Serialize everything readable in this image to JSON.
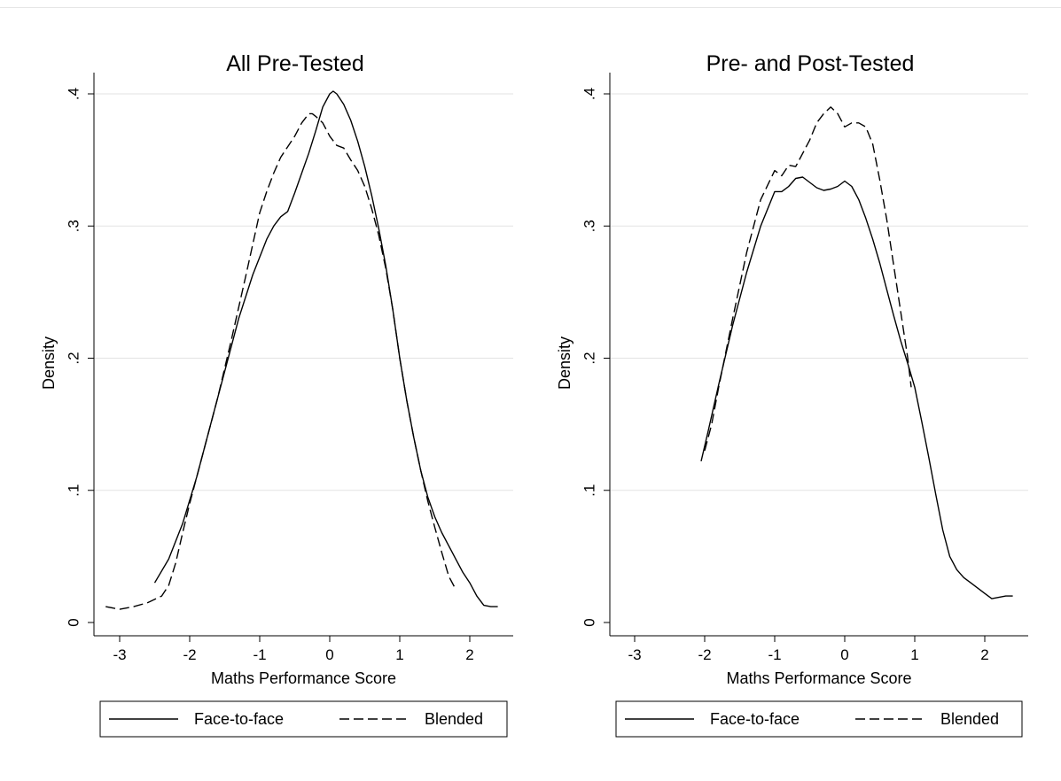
{
  "chart_data": [
    {
      "type": "line",
      "title": "All Pre-Tested",
      "xlabel": "Maths Performance Score",
      "ylabel": "Density",
      "xlim": [
        -3.3,
        2.5
      ],
      "ylim": [
        -0.005,
        0.41
      ],
      "xticks": [
        -3,
        -2,
        -1,
        0,
        1,
        2
      ],
      "yticks": [
        0,
        0.1,
        0.2,
        0.3,
        0.4
      ],
      "xtick_labels": [
        "-3",
        "-2",
        "-1",
        "0",
        "1",
        "2"
      ],
      "ytick_labels": [
        "0",
        ".1",
        ".2",
        ".3",
        ".4"
      ],
      "grid": "horizontal",
      "legend_position": "bottom",
      "series": [
        {
          "name": "Face-to-face",
          "style": "solid",
          "x": [
            -2.5,
            -2.3,
            -2.1,
            -1.9,
            -1.7,
            -1.5,
            -1.3,
            -1.1,
            -0.9,
            -0.8,
            -0.7,
            -0.6,
            -0.5,
            -0.4,
            -0.3,
            -0.2,
            -0.1,
            0.0,
            0.05,
            0.1,
            0.2,
            0.3,
            0.4,
            0.5,
            0.6,
            0.7,
            0.8,
            0.9,
            1.0,
            1.1,
            1.2,
            1.3,
            1.4,
            1.5,
            1.6,
            1.7,
            1.8,
            1.9,
            2.0,
            2.1,
            2.2,
            2.3,
            2.4
          ],
          "y": [
            0.03,
            0.048,
            0.075,
            0.11,
            0.15,
            0.19,
            0.23,
            0.263,
            0.29,
            0.3,
            0.307,
            0.311,
            0.325,
            0.34,
            0.355,
            0.372,
            0.39,
            0.4,
            0.402,
            0.4,
            0.392,
            0.38,
            0.364,
            0.345,
            0.323,
            0.298,
            0.27,
            0.237,
            0.2,
            0.168,
            0.14,
            0.115,
            0.095,
            0.08,
            0.068,
            0.058,
            0.048,
            0.038,
            0.03,
            0.02,
            0.013,
            0.012,
            0.012
          ]
        },
        {
          "name": "Blended",
          "style": "dashed",
          "x": [
            -3.2,
            -3.0,
            -2.8,
            -2.6,
            -2.4,
            -2.3,
            -2.2,
            -2.1,
            -2.0,
            -1.8,
            -1.6,
            -1.4,
            -1.2,
            -1.0,
            -0.9,
            -0.8,
            -0.7,
            -0.6,
            -0.5,
            -0.4,
            -0.3,
            -0.25,
            -0.2,
            -0.1,
            0.0,
            0.1,
            0.2,
            0.3,
            0.4,
            0.5,
            0.6,
            0.7,
            0.8,
            0.9,
            1.0,
            1.1,
            1.2,
            1.3,
            1.4,
            1.5,
            1.6,
            1.7,
            1.8
          ],
          "y": [
            0.012,
            0.01,
            0.012,
            0.015,
            0.02,
            0.028,
            0.045,
            0.068,
            0.09,
            0.13,
            0.17,
            0.215,
            0.262,
            0.31,
            0.326,
            0.34,
            0.352,
            0.36,
            0.368,
            0.378,
            0.385,
            0.385,
            0.383,
            0.378,
            0.368,
            0.361,
            0.359,
            0.35,
            0.342,
            0.33,
            0.313,
            0.293,
            0.268,
            0.237,
            0.2,
            0.168,
            0.14,
            0.115,
            0.092,
            0.072,
            0.053,
            0.035,
            0.025
          ]
        }
      ]
    },
    {
      "type": "line",
      "title": "Pre- and Post-Tested",
      "xlabel": "Maths Performance Score",
      "ylabel": "Density",
      "xlim": [
        -3.3,
        2.5
      ],
      "ylim": [
        -0.005,
        0.41
      ],
      "xticks": [
        -3,
        -2,
        -1,
        0,
        1,
        2
      ],
      "yticks": [
        0,
        0.1,
        0.2,
        0.3,
        0.4
      ],
      "xtick_labels": [
        "-3",
        "-2",
        "-1",
        "0",
        "1",
        "2"
      ],
      "ytick_labels": [
        "0",
        ".1",
        ".2",
        ".3",
        ".4"
      ],
      "grid": "horizontal",
      "legend_position": "bottom",
      "series": [
        {
          "name": "Face-to-face",
          "style": "solid",
          "x": [
            -2.05,
            -1.95,
            -1.8,
            -1.6,
            -1.4,
            -1.2,
            -1.0,
            -0.9,
            -0.8,
            -0.7,
            -0.6,
            -0.5,
            -0.4,
            -0.3,
            -0.2,
            -0.1,
            0.0,
            0.1,
            0.2,
            0.3,
            0.4,
            0.5,
            0.6,
            0.7,
            0.8,
            0.9,
            1.0,
            1.1,
            1.2,
            1.3,
            1.4,
            1.5,
            1.6,
            1.7,
            1.8,
            1.9,
            2.0,
            2.1,
            2.2,
            2.3,
            2.4
          ],
          "y": [
            0.122,
            0.145,
            0.18,
            0.225,
            0.265,
            0.3,
            0.326,
            0.326,
            0.33,
            0.336,
            0.337,
            0.333,
            0.329,
            0.327,
            0.328,
            0.33,
            0.334,
            0.33,
            0.32,
            0.306,
            0.29,
            0.272,
            0.252,
            0.232,
            0.213,
            0.196,
            0.178,
            0.152,
            0.125,
            0.097,
            0.07,
            0.05,
            0.04,
            0.034,
            0.03,
            0.026,
            0.022,
            0.018,
            0.019,
            0.02,
            0.02
          ]
        },
        {
          "name": "Blended",
          "style": "dashed",
          "x": [
            -2.0,
            -1.9,
            -1.8,
            -1.6,
            -1.4,
            -1.2,
            -1.0,
            -0.9,
            -0.8,
            -0.7,
            -0.6,
            -0.5,
            -0.4,
            -0.3,
            -0.2,
            -0.1,
            0.0,
            0.1,
            0.2,
            0.3,
            0.4,
            0.5,
            0.6,
            0.7,
            0.8,
            0.9,
            0.95
          ],
          "y": [
            0.13,
            0.15,
            0.178,
            0.23,
            0.28,
            0.32,
            0.342,
            0.338,
            0.346,
            0.345,
            0.355,
            0.365,
            0.378,
            0.385,
            0.39,
            0.385,
            0.375,
            0.378,
            0.378,
            0.375,
            0.362,
            0.335,
            0.305,
            0.27,
            0.235,
            0.2,
            0.178
          ]
        }
      ]
    }
  ]
}
